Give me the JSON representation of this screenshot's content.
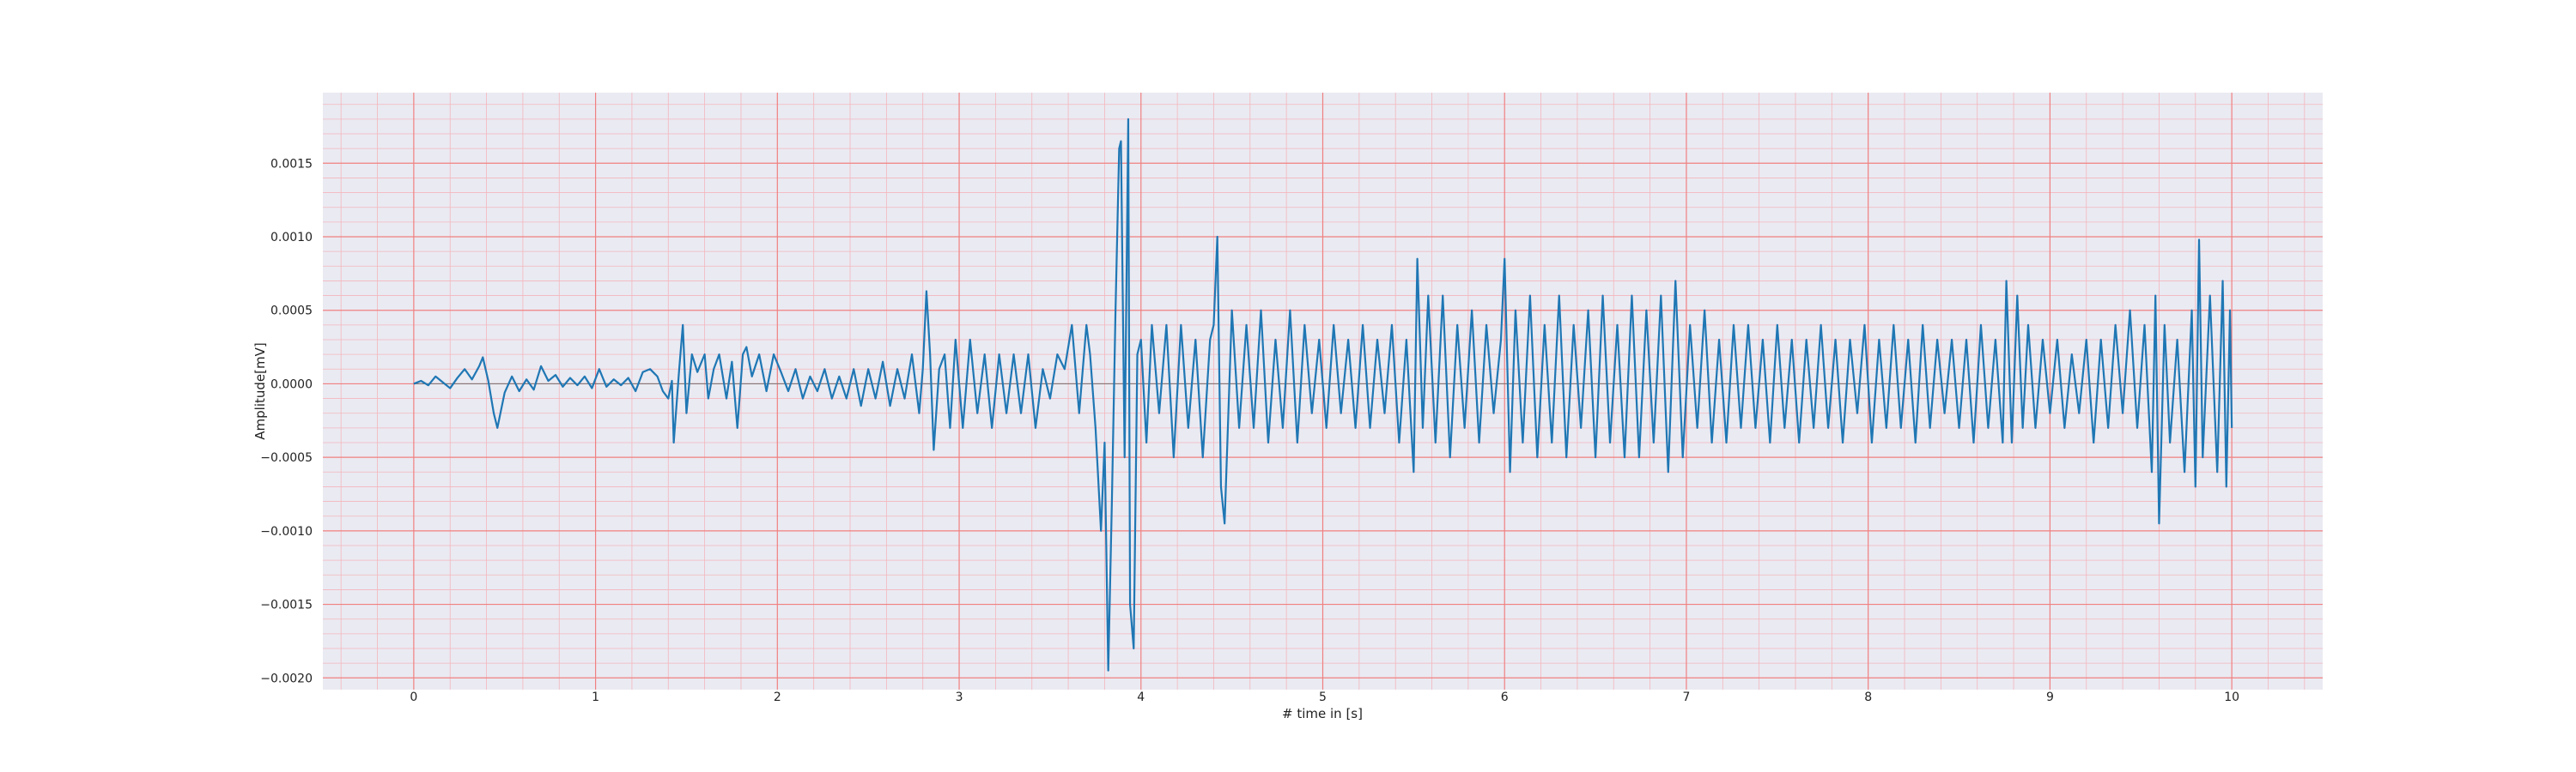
{
  "chart_data": {
    "type": "line",
    "xlabel": "# time in [s]",
    "ylabel": "Amplitude[mV]",
    "xlim": [
      -0.5,
      10.5
    ],
    "ylim": [
      -0.00208,
      0.00198
    ],
    "x_ticks": [
      "0",
      "1",
      "2",
      "3",
      "4",
      "5",
      "6",
      "7",
      "8",
      "9",
      "10"
    ],
    "y_ticks": [
      {
        "value": 0.0015,
        "label": "0.0015"
      },
      {
        "value": 0.001,
        "label": "0.0010"
      },
      {
        "value": 0.0005,
        "label": "0.0005"
      },
      {
        "value": 0.0,
        "label": "0.0000"
      },
      {
        "value": -0.0005,
        "label": "−0.0005"
      },
      {
        "value": -0.001,
        "label": "−0.0010"
      },
      {
        "value": -0.0015,
        "label": "−0.0015"
      },
      {
        "value": -0.002,
        "label": "−0.0020"
      }
    ],
    "grid": {
      "major": true,
      "minor": true
    },
    "colors": {
      "background": "#eaeaf2",
      "major_grid": "#f08080",
      "minor_grid": "#f4b6bd",
      "line": "#1f77b4"
    },
    "series": [
      {
        "color": "#1f77b4",
        "points": [
          [
            0.0,
            0.0
          ],
          [
            0.04,
            2e-05
          ],
          [
            0.08,
            -1e-05
          ],
          [
            0.12,
            5e-05
          ],
          [
            0.16,
            1e-05
          ],
          [
            0.2,
            -3e-05
          ],
          [
            0.24,
            4e-05
          ],
          [
            0.28,
            0.0001
          ],
          [
            0.32,
            3e-05
          ],
          [
            0.36,
            0.00012
          ],
          [
            0.38,
            0.00018
          ],
          [
            0.41,
            2e-05
          ],
          [
            0.44,
            -0.0002
          ],
          [
            0.46,
            -0.0003
          ],
          [
            0.5,
            -6e-05
          ],
          [
            0.54,
            5e-05
          ],
          [
            0.58,
            -5e-05
          ],
          [
            0.62,
            3e-05
          ],
          [
            0.66,
            -4e-05
          ],
          [
            0.7,
            0.00012
          ],
          [
            0.74,
            2e-05
          ],
          [
            0.78,
            6e-05
          ],
          [
            0.82,
            -2e-05
          ],
          [
            0.86,
            4e-05
          ],
          [
            0.9,
            -1e-05
          ],
          [
            0.94,
            5e-05
          ],
          [
            0.98,
            -3e-05
          ],
          [
            1.02,
            0.0001
          ],
          [
            1.06,
            -2e-05
          ],
          [
            1.1,
            3e-05
          ],
          [
            1.14,
            -1e-05
          ],
          [
            1.18,
            4e-05
          ],
          [
            1.22,
            -5e-05
          ],
          [
            1.26,
            8e-05
          ],
          [
            1.3,
            0.0001
          ],
          [
            1.34,
            5e-05
          ],
          [
            1.37,
            -5e-05
          ],
          [
            1.4,
            -0.0001
          ],
          [
            1.42,
            2e-05
          ],
          [
            1.43,
            -0.0004
          ],
          [
            1.46,
            0.0001
          ],
          [
            1.48,
            0.0004
          ],
          [
            1.5,
            -0.0002
          ],
          [
            1.53,
            0.0002
          ],
          [
            1.56,
            8e-05
          ],
          [
            1.6,
            0.0002
          ],
          [
            1.62,
            -0.0001
          ],
          [
            1.65,
            0.0001
          ],
          [
            1.68,
            0.0002
          ],
          [
            1.7,
            5e-05
          ],
          [
            1.72,
            -0.0001
          ],
          [
            1.75,
            0.00015
          ],
          [
            1.78,
            -0.0003
          ],
          [
            1.81,
            0.0002
          ],
          [
            1.83,
            0.00025
          ],
          [
            1.86,
            5e-05
          ],
          [
            1.9,
            0.0002
          ],
          [
            1.94,
            -5e-05
          ],
          [
            1.98,
            0.0002
          ],
          [
            2.02,
            8e-05
          ],
          [
            2.06,
            -5e-05
          ],
          [
            2.1,
            0.0001
          ],
          [
            2.14,
            -0.0001
          ],
          [
            2.18,
            5e-05
          ],
          [
            2.22,
            -5e-05
          ],
          [
            2.26,
            0.0001
          ],
          [
            2.3,
            -0.0001
          ],
          [
            2.34,
            5e-05
          ],
          [
            2.38,
            -0.0001
          ],
          [
            2.42,
            0.0001
          ],
          [
            2.46,
            -0.00015
          ],
          [
            2.5,
            0.0001
          ],
          [
            2.54,
            -0.0001
          ],
          [
            2.58,
            0.00015
          ],
          [
            2.62,
            -0.00015
          ],
          [
            2.66,
            0.0001
          ],
          [
            2.7,
            -0.0001
          ],
          [
            2.74,
            0.0002
          ],
          [
            2.78,
            -0.0002
          ],
          [
            2.8,
            0.0001
          ],
          [
            2.82,
            0.00063
          ],
          [
            2.84,
            0.0002
          ],
          [
            2.86,
            -0.00045
          ],
          [
            2.89,
            0.0001
          ],
          [
            2.92,
            0.0002
          ],
          [
            2.95,
            -0.0003
          ],
          [
            2.98,
            0.0003
          ],
          [
            3.02,
            -0.0003
          ],
          [
            3.06,
            0.0003
          ],
          [
            3.1,
            -0.0002
          ],
          [
            3.14,
            0.0002
          ],
          [
            3.18,
            -0.0003
          ],
          [
            3.22,
            0.0002
          ],
          [
            3.26,
            -0.0002
          ],
          [
            3.3,
            0.0002
          ],
          [
            3.34,
            -0.0002
          ],
          [
            3.38,
            0.0002
          ],
          [
            3.42,
            -0.0003
          ],
          [
            3.46,
            0.0001
          ],
          [
            3.5,
            -0.0001
          ],
          [
            3.54,
            0.0002
          ],
          [
            3.58,
            0.0001
          ],
          [
            3.62,
            0.0004
          ],
          [
            3.66,
            -0.0002
          ],
          [
            3.7,
            0.0004
          ],
          [
            3.72,
            0.0002
          ],
          [
            3.75,
            -0.0003
          ],
          [
            3.78,
            -0.001
          ],
          [
            3.8,
            -0.0004
          ],
          [
            3.82,
            -0.00195
          ],
          [
            3.84,
            -0.0008
          ],
          [
            3.86,
            0.0005
          ],
          [
            3.88,
            0.0016
          ],
          [
            3.89,
            0.00165
          ],
          [
            3.91,
            -0.0005
          ],
          [
            3.93,
            0.0018
          ],
          [
            3.94,
            -0.0015
          ],
          [
            3.96,
            -0.0018
          ],
          [
            3.98,
            0.0002
          ],
          [
            4.0,
            0.0003
          ],
          [
            4.03,
            -0.0004
          ],
          [
            4.06,
            0.0004
          ],
          [
            4.1,
            -0.0002
          ],
          [
            4.14,
            0.0004
          ],
          [
            4.18,
            -0.0005
          ],
          [
            4.22,
            0.0004
          ],
          [
            4.26,
            -0.0003
          ],
          [
            4.3,
            0.0003
          ],
          [
            4.34,
            -0.0005
          ],
          [
            4.38,
            0.0003
          ],
          [
            4.4,
            0.0004
          ],
          [
            4.42,
            0.001
          ],
          [
            4.44,
            -0.0007
          ],
          [
            4.46,
            -0.00095
          ],
          [
            4.5,
            0.0005
          ],
          [
            4.54,
            -0.0003
          ],
          [
            4.58,
            0.0004
          ],
          [
            4.62,
            -0.0003
          ],
          [
            4.66,
            0.0005
          ],
          [
            4.7,
            -0.0004
          ],
          [
            4.74,
            0.0003
          ],
          [
            4.78,
            -0.0003
          ],
          [
            4.82,
            0.0005
          ],
          [
            4.86,
            -0.0004
          ],
          [
            4.9,
            0.0004
          ],
          [
            4.94,
            -0.0002
          ],
          [
            4.98,
            0.0003
          ],
          [
            5.02,
            -0.0003
          ],
          [
            5.06,
            0.0004
          ],
          [
            5.1,
            -0.0002
          ],
          [
            5.14,
            0.0003
          ],
          [
            5.18,
            -0.0003
          ],
          [
            5.22,
            0.0004
          ],
          [
            5.26,
            -0.0003
          ],
          [
            5.3,
            0.0003
          ],
          [
            5.34,
            -0.0002
          ],
          [
            5.38,
            0.0004
          ],
          [
            5.42,
            -0.0004
          ],
          [
            5.46,
            0.0003
          ],
          [
            5.5,
            -0.0006
          ],
          [
            5.52,
            0.00085
          ],
          [
            5.55,
            -0.0003
          ],
          [
            5.58,
            0.0006
          ],
          [
            5.62,
            -0.0004
          ],
          [
            5.66,
            0.0006
          ],
          [
            5.7,
            -0.0005
          ],
          [
            5.74,
            0.0004
          ],
          [
            5.78,
            -0.0003
          ],
          [
            5.82,
            0.0005
          ],
          [
            5.86,
            -0.0004
          ],
          [
            5.9,
            0.0004
          ],
          [
            5.94,
            -0.0002
          ],
          [
            5.98,
            0.0003
          ],
          [
            6.0,
            0.00085
          ],
          [
            6.03,
            -0.0006
          ],
          [
            6.06,
            0.0005
          ],
          [
            6.1,
            -0.0004
          ],
          [
            6.14,
            0.0006
          ],
          [
            6.18,
            -0.0005
          ],
          [
            6.22,
            0.0004
          ],
          [
            6.26,
            -0.0004
          ],
          [
            6.3,
            0.0006
          ],
          [
            6.34,
            -0.0005
          ],
          [
            6.38,
            0.0004
          ],
          [
            6.42,
            -0.0003
          ],
          [
            6.46,
            0.0005
          ],
          [
            6.5,
            -0.0005
          ],
          [
            6.54,
            0.0006
          ],
          [
            6.58,
            -0.0004
          ],
          [
            6.62,
            0.0004
          ],
          [
            6.66,
            -0.0005
          ],
          [
            6.7,
            0.0006
          ],
          [
            6.74,
            -0.0005
          ],
          [
            6.78,
            0.0005
          ],
          [
            6.82,
            -0.0004
          ],
          [
            6.86,
            0.0006
          ],
          [
            6.9,
            -0.0006
          ],
          [
            6.94,
            0.0007
          ],
          [
            6.98,
            -0.0005
          ],
          [
            7.02,
            0.0004
          ],
          [
            7.06,
            -0.0003
          ],
          [
            7.1,
            0.0005
          ],
          [
            7.14,
            -0.0004
          ],
          [
            7.18,
            0.0003
          ],
          [
            7.22,
            -0.0004
          ],
          [
            7.26,
            0.0004
          ],
          [
            7.3,
            -0.0003
          ],
          [
            7.34,
            0.0004
          ],
          [
            7.38,
            -0.0003
          ],
          [
            7.42,
            0.0003
          ],
          [
            7.46,
            -0.0004
          ],
          [
            7.5,
            0.0004
          ],
          [
            7.54,
            -0.0003
          ],
          [
            7.58,
            0.0003
          ],
          [
            7.62,
            -0.0004
          ],
          [
            7.66,
            0.0003
          ],
          [
            7.7,
            -0.0003
          ],
          [
            7.74,
            0.0004
          ],
          [
            7.78,
            -0.0003
          ],
          [
            7.82,
            0.0003
          ],
          [
            7.86,
            -0.0004
          ],
          [
            7.9,
            0.0003
          ],
          [
            7.94,
            -0.0002
          ],
          [
            7.98,
            0.0004
          ],
          [
            8.02,
            -0.0004
          ],
          [
            8.06,
            0.0003
          ],
          [
            8.1,
            -0.0003
          ],
          [
            8.14,
            0.0004
          ],
          [
            8.18,
            -0.0003
          ],
          [
            8.22,
            0.0003
          ],
          [
            8.26,
            -0.0004
          ],
          [
            8.3,
            0.0004
          ],
          [
            8.34,
            -0.0003
          ],
          [
            8.38,
            0.0003
          ],
          [
            8.42,
            -0.0002
          ],
          [
            8.46,
            0.0003
          ],
          [
            8.5,
            -0.0003
          ],
          [
            8.54,
            0.0003
          ],
          [
            8.58,
            -0.0004
          ],
          [
            8.62,
            0.0004
          ],
          [
            8.66,
            -0.0003
          ],
          [
            8.7,
            0.0003
          ],
          [
            8.74,
            -0.0004
          ],
          [
            8.76,
            0.0007
          ],
          [
            8.79,
            -0.0004
          ],
          [
            8.82,
            0.0006
          ],
          [
            8.85,
            -0.0003
          ],
          [
            8.88,
            0.0004
          ],
          [
            8.92,
            -0.0003
          ],
          [
            8.96,
            0.0003
          ],
          [
            9.0,
            -0.0002
          ],
          [
            9.04,
            0.0003
          ],
          [
            9.08,
            -0.0003
          ],
          [
            9.12,
            0.0002
          ],
          [
            9.16,
            -0.0002
          ],
          [
            9.2,
            0.0003
          ],
          [
            9.24,
            -0.0004
          ],
          [
            9.28,
            0.0003
          ],
          [
            9.32,
            -0.0003
          ],
          [
            9.36,
            0.0004
          ],
          [
            9.4,
            -0.0002
          ],
          [
            9.44,
            0.0005
          ],
          [
            9.48,
            -0.0003
          ],
          [
            9.52,
            0.0004
          ],
          [
            9.56,
            -0.0006
          ],
          [
            9.58,
            0.0006
          ],
          [
            9.6,
            -0.00095
          ],
          [
            9.63,
            0.0004
          ],
          [
            9.66,
            -0.0004
          ],
          [
            9.7,
            0.0003
          ],
          [
            9.74,
            -0.0006
          ],
          [
            9.78,
            0.0005
          ],
          [
            9.8,
            -0.0007
          ],
          [
            9.82,
            0.00098
          ],
          [
            9.84,
            -0.0005
          ],
          [
            9.88,
            0.0006
          ],
          [
            9.92,
            -0.0006
          ],
          [
            9.95,
            0.0007
          ],
          [
            9.97,
            -0.0007
          ],
          [
            9.99,
            0.0005
          ],
          [
            10.0,
            -0.0003
          ]
        ]
      }
    ]
  }
}
